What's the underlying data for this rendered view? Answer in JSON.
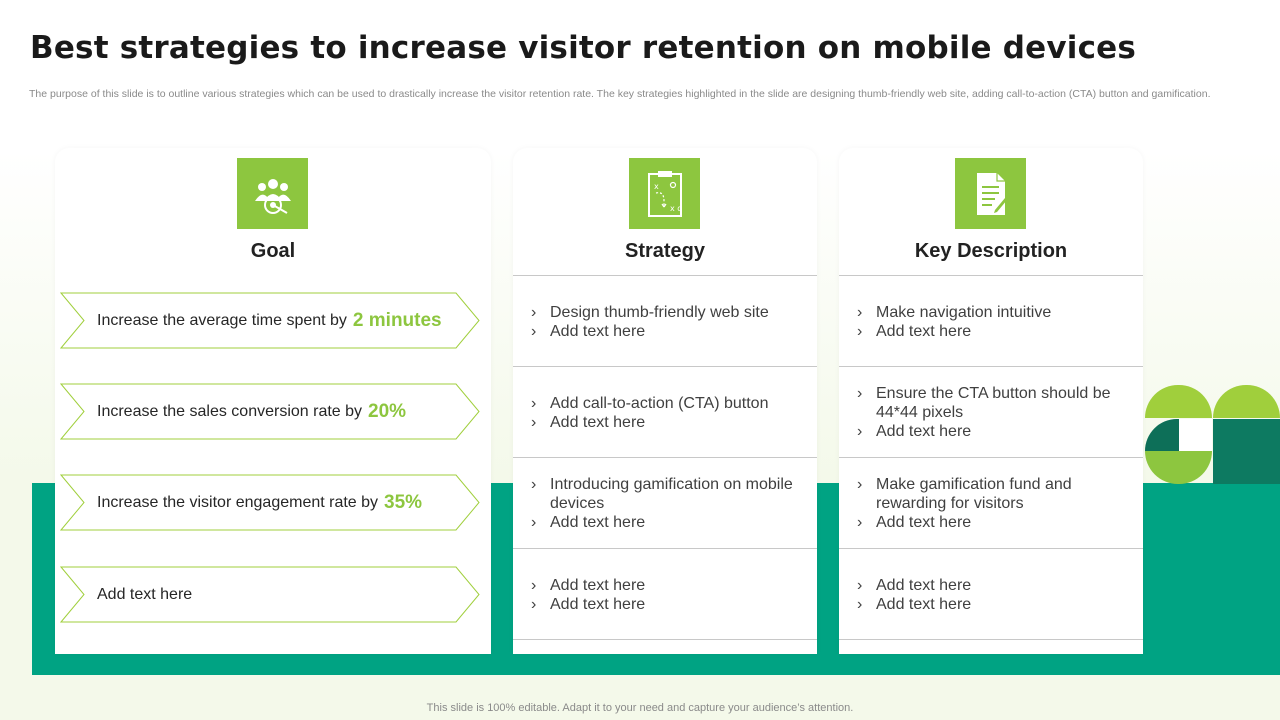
{
  "title": "Best strategies to increase visitor retention on mobile devices",
  "subtitle": "The purpose of this slide is to outline various strategies which can be used to drastically increase the visitor retention rate. The key strategies highlighted in the slide are designing thumb-friendly web site, adding call-to-action (CTA) button and gamification.",
  "colors": {
    "accent_green": "#8dc63f",
    "teal": "#00a383",
    "dark_teal": "#0d7a61"
  },
  "goal": {
    "icon": "team-target-icon",
    "heading": "Goal",
    "items": [
      {
        "text": "Increase  the average time spent by",
        "highlight": "2 minutes"
      },
      {
        "text": "Increase  the sales conversion rate by",
        "highlight": "20%"
      },
      {
        "text": "Increase  the visitor engagement rate by",
        "highlight": "35%"
      },
      {
        "text": "Add text here",
        "highlight": ""
      }
    ]
  },
  "strategy": {
    "icon": "strategy-board-icon",
    "heading": "Strategy",
    "rows": [
      [
        "Design thumb-friendly  web site",
        "Add text here"
      ],
      [
        "Add call-to-action  (CTA) button",
        "Add text here"
      ],
      [
        "Introducing  gamification on mobile devices",
        "Add text here"
      ],
      [
        "Add text here",
        "Add text here"
      ]
    ]
  },
  "description": {
    "icon": "document-icon",
    "heading": "Key Description",
    "rows": [
      [
        "Make navigation intuitive",
        "Add text here"
      ],
      [
        "Ensure the CTA button should be 44*44 pixels",
        "Add text here"
      ],
      [
        "Make gamification fund and rewarding for visitors",
        "Add text here"
      ],
      [
        "Add text here",
        "Add text here"
      ]
    ]
  },
  "footer": "This slide is 100% editable. Adapt it to your need and capture your audience’s attention."
}
